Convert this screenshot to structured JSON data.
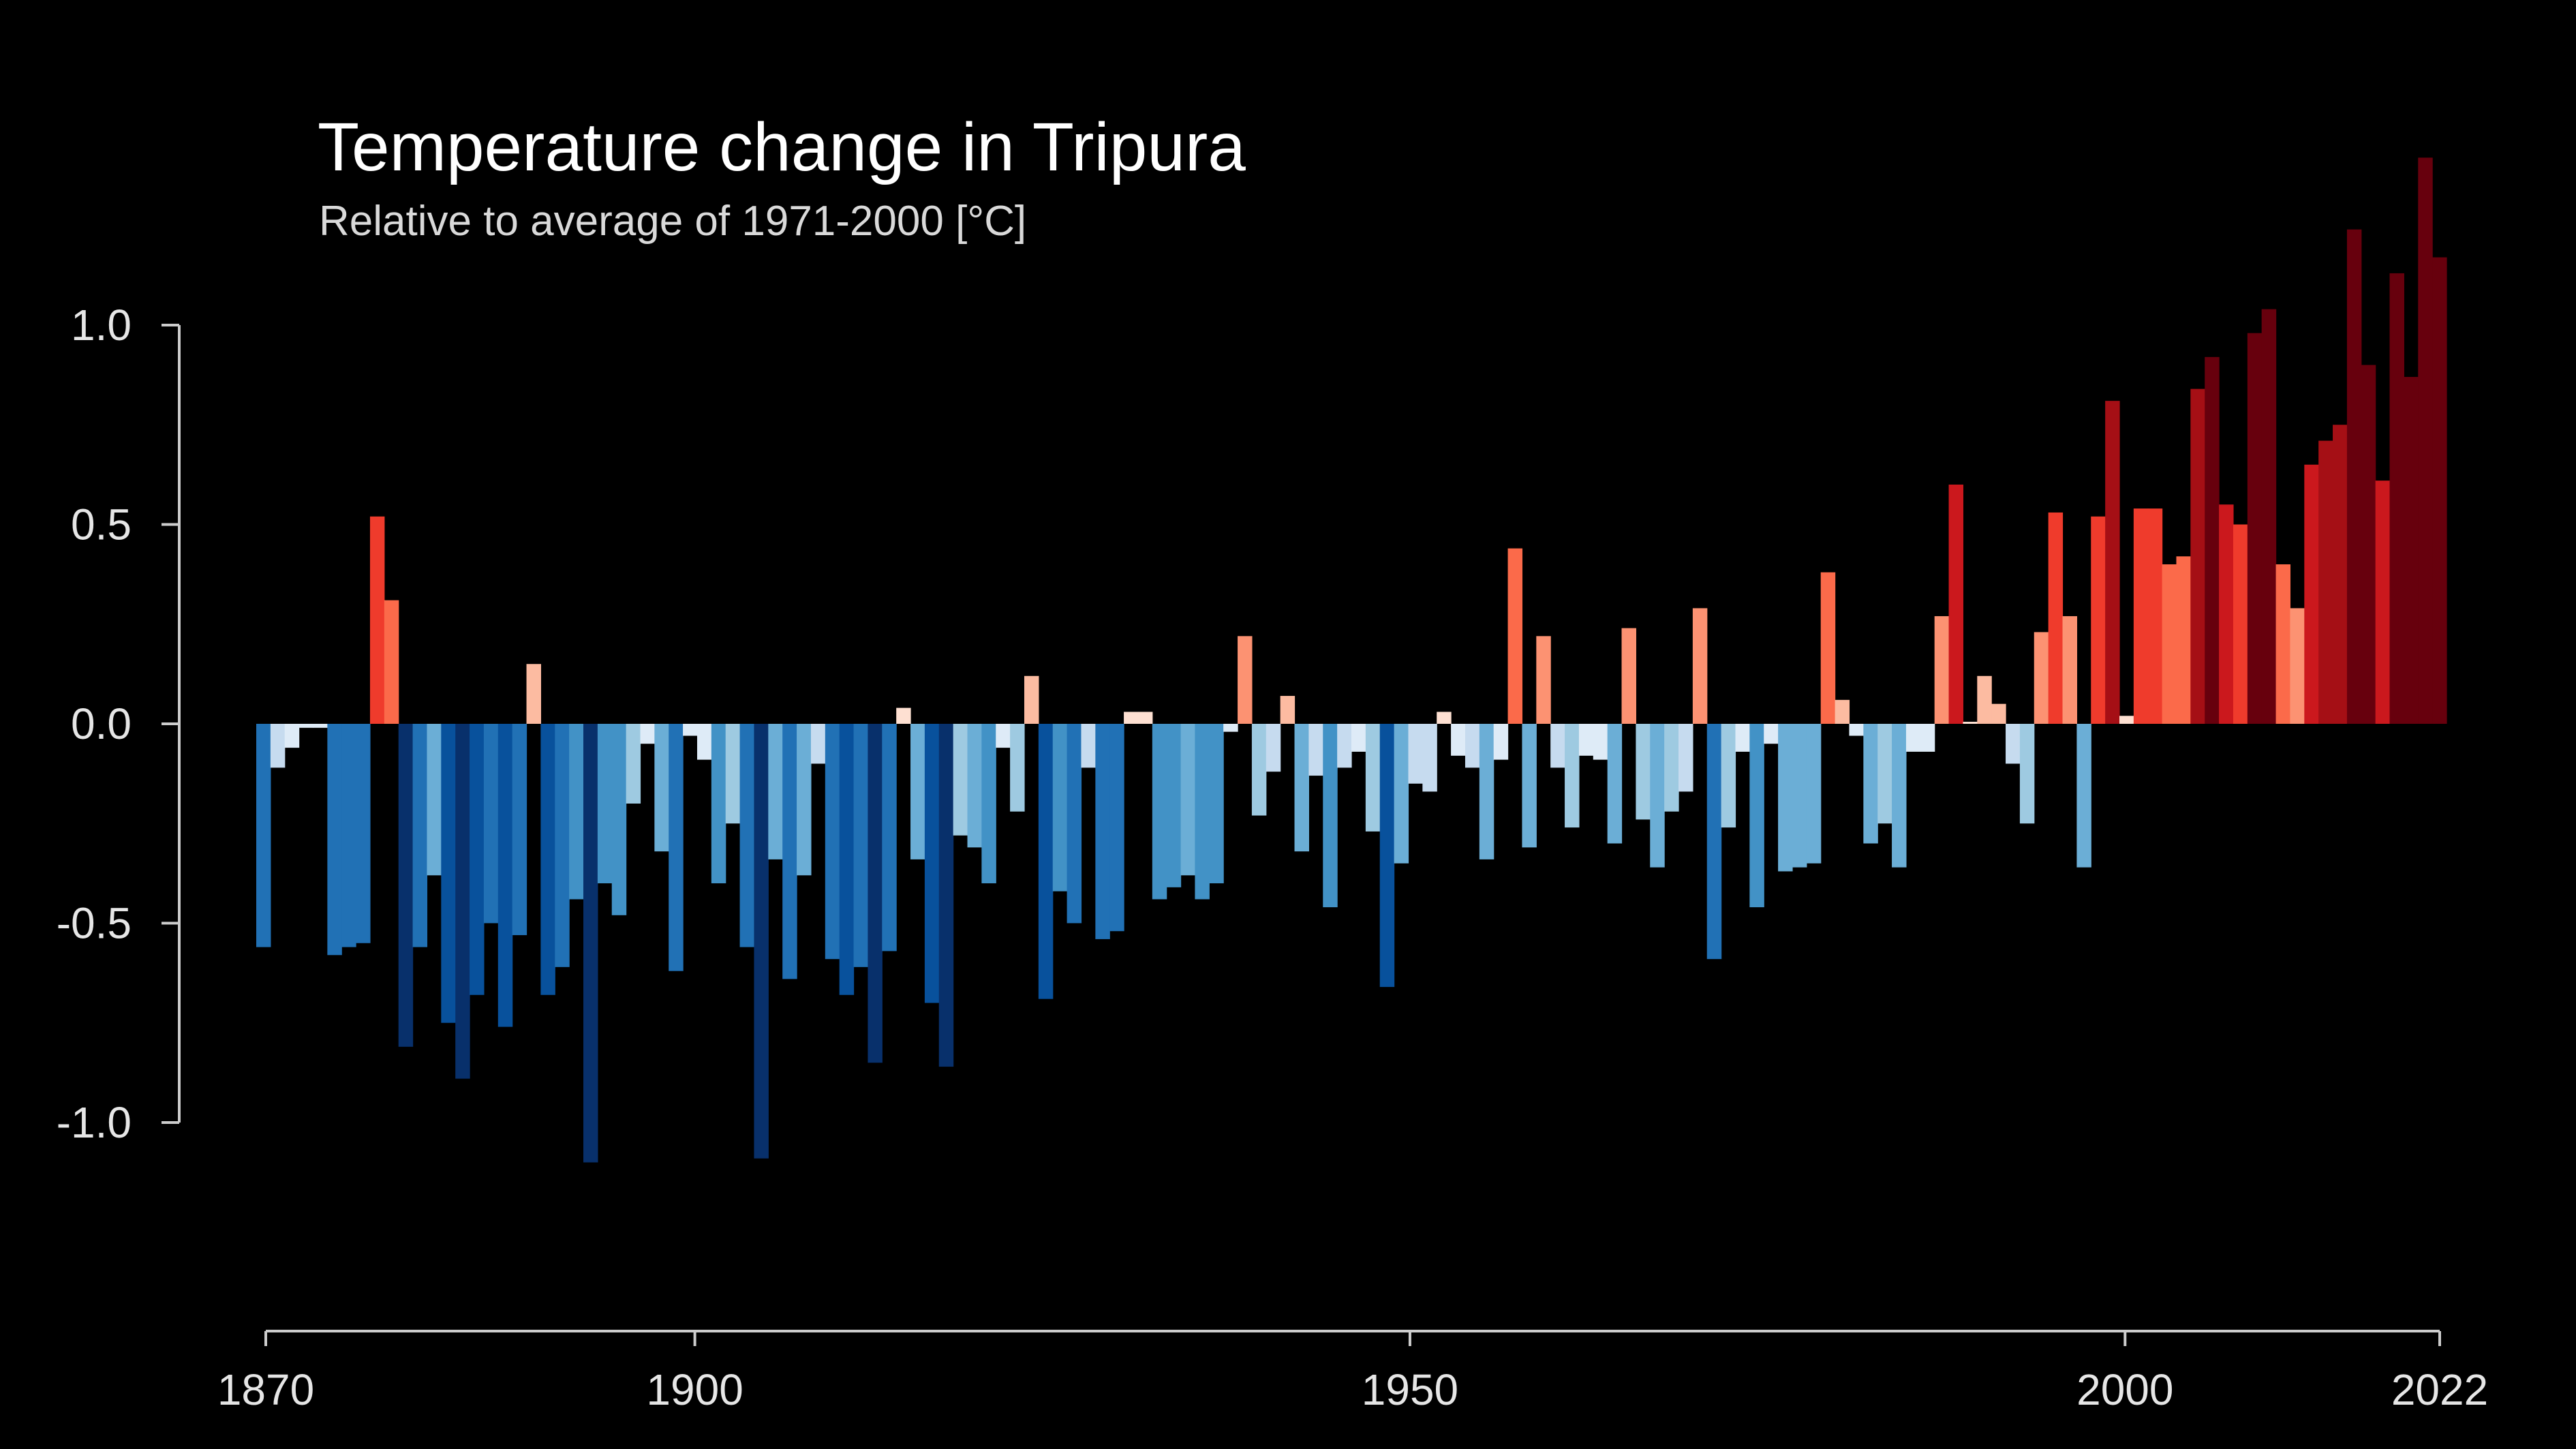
{
  "chart_data": {
    "type": "bar",
    "title": "Temperature change in Tripura",
    "subtitle": "Relative to average of 1971-2000  [°C]",
    "xlabel": "",
    "ylabel": "",
    "x_start": 1870,
    "x_end": 2022,
    "xlim": [
      1870,
      2022
    ],
    "ylim": [
      -1.2,
      1.4
    ],
    "y_ticks": [
      {
        "value": 1.0,
        "label": "1.0"
      },
      {
        "value": 0.5,
        "label": "0.5"
      },
      {
        "value": 0.0,
        "label": "0.0"
      },
      {
        "value": -0.5,
        "label": "-0.5"
      },
      {
        "value": -1.0,
        "label": "-1.0"
      }
    ],
    "x_ticks": [
      {
        "value": 1870,
        "label": "1870"
      },
      {
        "value": 1900,
        "label": "1900"
      },
      {
        "value": 1950,
        "label": "1950"
      },
      {
        "value": 2000,
        "label": "2000"
      },
      {
        "value": 2022,
        "label": "2022"
      }
    ],
    "grid": false,
    "legend": "none",
    "colors": {
      "background": "#000000",
      "text": "#ffffff",
      "axis": "#cccccc"
    },
    "values": [
      -0.56,
      -0.11,
      -0.06,
      -0.01,
      -0.01,
      -0.58,
      -0.56,
      -0.55,
      0.52,
      0.31,
      -0.81,
      -0.56,
      -0.38,
      -0.75,
      -0.89,
      -0.68,
      -0.5,
      -0.76,
      -0.53,
      0.15,
      -0.68,
      -0.61,
      -0.44,
      -1.1,
      -0.4,
      -0.48,
      -0.2,
      -0.05,
      -0.32,
      -0.62,
      -0.03,
      -0.09,
      -0.4,
      -0.25,
      -0.56,
      -1.09,
      -0.34,
      -0.64,
      -0.38,
      -0.1,
      -0.59,
      -0.68,
      -0.61,
      -0.85,
      -0.57,
      0.04,
      -0.34,
      -0.7,
      -0.86,
      -0.28,
      -0.31,
      -0.4,
      -0.06,
      -0.22,
      0.12,
      -0.69,
      -0.42,
      -0.5,
      -0.11,
      -0.54,
      -0.52,
      0.03,
      0.03,
      -0.44,
      -0.41,
      -0.38,
      -0.44,
      -0.4,
      -0.02,
      0.22,
      -0.23,
      -0.12,
      0.07,
      -0.32,
      -0.13,
      -0.46,
      -0.11,
      -0.07,
      -0.27,
      -0.66,
      -0.35,
      -0.15,
      -0.17,
      0.03,
      -0.08,
      -0.11,
      -0.34,
      -0.09,
      0.44,
      -0.31,
      0.22,
      -0.11,
      -0.26,
      -0.08,
      -0.09,
      -0.3,
      0.24,
      -0.24,
      -0.36,
      -0.22,
      -0.17,
      0.29,
      -0.59,
      -0.26,
      -0.07,
      -0.46,
      -0.05,
      -0.37,
      -0.36,
      -0.35,
      0.38,
      0.06,
      -0.03,
      -0.3,
      -0.25,
      -0.36,
      -0.07,
      -0.07,
      0.27,
      0.6,
      0.0,
      0.12,
      0.05,
      -0.1,
      -0.25,
      0.23,
      0.53,
      0.27,
      -0.36,
      0.52,
      0.81,
      0.02,
      0.54,
      0.54,
      0.4,
      0.42,
      0.84,
      0.92,
      0.55,
      0.5,
      0.98,
      1.04,
      0.4,
      0.29,
      0.65,
      0.71,
      0.75,
      1.24,
      0.9,
      0.61,
      1.13,
      0.87,
      1.42,
      1.17
    ]
  }
}
